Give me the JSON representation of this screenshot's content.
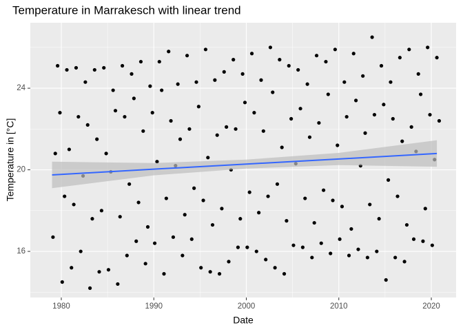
{
  "chart_data": {
    "type": "scatter",
    "title": "Temperature in Marrakesch with linear trend",
    "x_label": "Date",
    "y_label": "Temperature in [°C]",
    "xlim": [
      1976.65,
      2022.68
    ],
    "ylim": [
      13.74,
      27.21
    ],
    "xticks": [
      1980,
      1990,
      2000,
      2010,
      2020
    ],
    "yticks": [
      16,
      20,
      24
    ],
    "x_minor_ticks": [
      1985,
      1995,
      2005,
      2015
    ],
    "y_minor_ticks": [
      14,
      18,
      22,
      26
    ],
    "grid": true,
    "point_color": "#000000",
    "x": [
      1979.1,
      1979.35,
      1979.6,
      1979.85,
      1980.1,
      1980.35,
      1980.6,
      1980.85,
      1981.1,
      1981.35,
      1981.6,
      1981.85,
      1982.1,
      1982.35,
      1982.6,
      1982.85,
      1983.1,
      1983.35,
      1983.6,
      1983.85,
      1984.1,
      1984.35,
      1984.6,
      1984.85,
      1985.1,
      1985.35,
      1985.6,
      1985.85,
      1986.1,
      1986.35,
      1986.6,
      1986.85,
      1987.1,
      1987.35,
      1987.6,
      1987.85,
      1988.1,
      1988.35,
      1988.6,
      1988.85,
      1989.1,
      1989.35,
      1989.6,
      1989.85,
      1990.1,
      1990.35,
      1990.6,
      1990.85,
      1991.1,
      1991.35,
      1991.6,
      1991.85,
      1992.1,
      1992.35,
      1992.6,
      1992.85,
      1993.1,
      1993.35,
      1993.6,
      1993.85,
      1994.1,
      1994.35,
      1994.6,
      1994.85,
      1995.1,
      1995.35,
      1995.6,
      1995.85,
      1996.1,
      1996.35,
      1996.6,
      1996.85,
      1997.1,
      1997.35,
      1997.6,
      1997.85,
      1998.1,
      1998.35,
      1998.6,
      1998.85,
      1999.1,
      1999.35,
      1999.6,
      1999.85,
      2000.1,
      2000.35,
      2000.6,
      2000.85,
      2001.1,
      2001.35,
      2001.6,
      2001.85,
      2002.1,
      2002.35,
      2002.6,
      2002.85,
      2003.1,
      2003.35,
      2003.6,
      2003.85,
      2004.1,
      2004.35,
      2004.6,
      2004.85,
      2005.1,
      2005.35,
      2005.6,
      2005.85,
      2006.1,
      2006.35,
      2006.6,
      2006.85,
      2007.1,
      2007.35,
      2007.6,
      2007.85,
      2008.1,
      2008.35,
      2008.6,
      2008.85,
      2009.1,
      2009.35,
      2009.6,
      2009.85,
      2010.1,
      2010.35,
      2010.6,
      2010.85,
      2011.1,
      2011.35,
      2011.6,
      2011.85,
      2012.1,
      2012.35,
      2012.6,
      2012.85,
      2013.1,
      2013.35,
      2013.6,
      2013.85,
      2014.1,
      2014.35,
      2014.6,
      2014.85,
      2015.1,
      2015.35,
      2015.6,
      2015.85,
      2016.1,
      2016.35,
      2016.6,
      2016.85,
      2017.1,
      2017.35,
      2017.6,
      2017.85,
      2018.1,
      2018.35,
      2018.6,
      2018.85,
      2019.1,
      2019.35,
      2019.6,
      2019.85,
      2020.1,
      2020.35,
      2020.6,
      2020.85
    ],
    "values": [
      16.7,
      20.8,
      25.1,
      22.8,
      14.5,
      18.7,
      24.9,
      21.0,
      15.2,
      18.3,
      25.0,
      22.6,
      16.0,
      19.7,
      24.3,
      22.2,
      14.2,
      17.6,
      24.9,
      21.5,
      15.0,
      18.0,
      25.0,
      20.8,
      15.1,
      19.9,
      23.9,
      22.9,
      14.4,
      17.7,
      25.1,
      22.6,
      15.8,
      19.3,
      24.7,
      23.5,
      16.5,
      18.4,
      25.3,
      21.9,
      15.4,
      17.2,
      24.1,
      22.8,
      16.4,
      20.4,
      25.3,
      23.9,
      14.9,
      18.6,
      25.8,
      22.4,
      16.7,
      20.2,
      24.2,
      21.5,
      15.8,
      17.8,
      25.6,
      22.0,
      16.6,
      19.1,
      24.3,
      23.1,
      15.2,
      18.5,
      25.9,
      20.6,
      15.0,
      17.3,
      24.4,
      21.7,
      14.9,
      18.1,
      24.8,
      22.1,
      15.5,
      20.0,
      25.4,
      22.0,
      16.2,
      17.6,
      24.7,
      23.3,
      16.2,
      18.9,
      25.7,
      22.8,
      16.0,
      17.9,
      24.4,
      21.9,
      15.6,
      18.7,
      26.0,
      23.8,
      15.2,
      19.3,
      25.4,
      21.1,
      14.9,
      17.5,
      25.1,
      22.5,
      16.3,
      20.3,
      24.9,
      23.0,
      16.2,
      18.6,
      24.2,
      21.6,
      15.7,
      17.4,
      25.6,
      22.3,
      16.4,
      19.0,
      25.3,
      23.7,
      15.9,
      18.5,
      25.9,
      21.2,
      16.6,
      18.2,
      24.3,
      22.6,
      15.8,
      17.1,
      25.7,
      23.4,
      16.1,
      20.2,
      24.6,
      21.8,
      15.7,
      18.3,
      26.5,
      22.7,
      16.0,
      17.6,
      25.1,
      23.2,
      14.6,
      19.5,
      24.3,
      22.5,
      15.7,
      18.7,
      25.5,
      21.4,
      15.5,
      17.3,
      25.9,
      22.1,
      16.6,
      20.9,
      24.7,
      23.7,
      16.5,
      18.1,
      26.0,
      22.7,
      16.3,
      20.5,
      25.5,
      22.4
    ],
    "trend": {
      "color": "#3366ff",
      "band_color": "#bebebe",
      "x": [
        1979,
        1990,
        2000,
        2010,
        2020.6
      ],
      "values": [
        19.75,
        20.03,
        20.28,
        20.53,
        20.8
      ],
      "lower": [
        19.1,
        19.73,
        20.06,
        20.23,
        20.15
      ],
      "upper": [
        20.4,
        20.33,
        20.5,
        20.83,
        21.45
      ]
    }
  }
}
